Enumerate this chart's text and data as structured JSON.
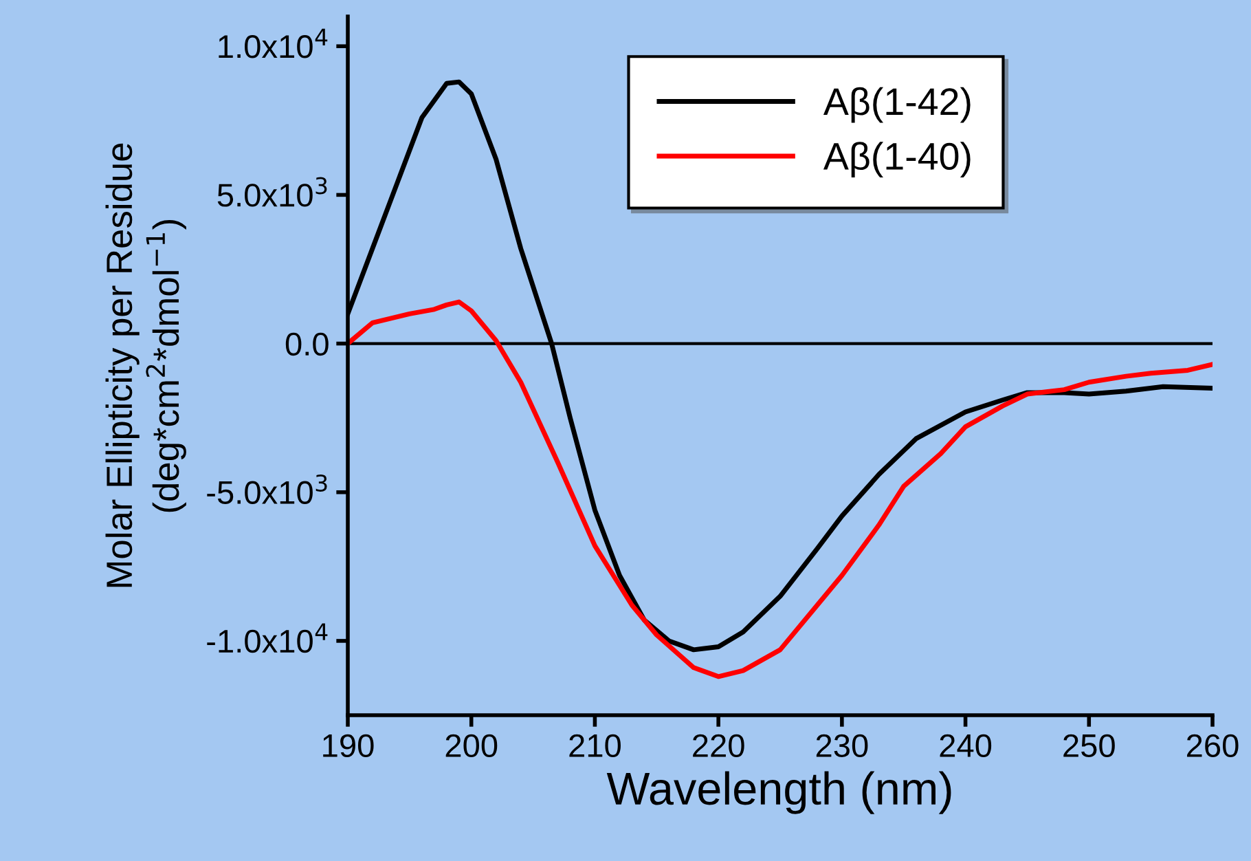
{
  "chart_data": {
    "type": "line",
    "xlabel": "Wavelength (nm)",
    "ylabel": "Molar Ellipticity per Residue\n(deg*cm$^{2}$*dmol$^{−1}$)",
    "xlim": [
      190,
      260
    ],
    "xticks": [
      190,
      200,
      210,
      220,
      230,
      240,
      250,
      260
    ],
    "ylim": [
      -12500,
      11000
    ],
    "yticks": [
      {
        "value": -10000,
        "label": "-1.0x10$^{4}$"
      },
      {
        "value": -5000,
        "label": "-5.0x10$^{3}$"
      },
      {
        "value": 0,
        "label": "0.0"
      },
      {
        "value": 5000,
        "label": "5.0x10$^{3}$"
      },
      {
        "value": 10000,
        "label": "1.0x10$^{4}$"
      }
    ],
    "grid": false,
    "legend": "top right",
    "marker": "none",
    "line_style": "solid",
    "ref_lines": [
      {
        "axis": "y",
        "value": 0,
        "color": "#000000"
      }
    ],
    "series": [
      {
        "name": "Aβ(1-42)",
        "color": "#000000",
        "x": [
          190,
          192,
          194,
          196,
          198,
          199,
          200,
          202,
          204,
          206.5,
          208,
          210,
          212,
          214,
          216,
          218,
          220,
          222,
          225,
          228,
          230,
          233,
          236,
          240,
          243,
          245,
          248,
          250,
          253,
          256,
          260
        ],
        "values": [
          1000,
          3200,
          5400,
          7600,
          8750,
          8800,
          8400,
          6200,
          3200,
          0,
          -2500,
          -5600,
          -7800,
          -9300,
          -10000,
          -10300,
          -10200,
          -9700,
          -8500,
          -6900,
          -5800,
          -4400,
          -3200,
          -2300,
          -1900,
          -1650,
          -1650,
          -1700,
          -1600,
          -1450,
          -1500
        ]
      },
      {
        "name": "Aβ(1-40)",
        "color": "#ff0000",
        "x": [
          190,
          192,
          195,
          197,
          198,
          199,
          200,
          202,
          204,
          207,
          210,
          213,
          215,
          218,
          220,
          222,
          225,
          228,
          230,
          233,
          235,
          238,
          240,
          243,
          245,
          248,
          250,
          253,
          255,
          258,
          260
        ],
        "values": [
          0,
          700,
          1000,
          1150,
          1300,
          1400,
          1100,
          100,
          -1300,
          -4000,
          -6800,
          -8800,
          -9800,
          -10900,
          -11200,
          -11000,
          -10300,
          -8800,
          -7800,
          -6100,
          -4800,
          -3700,
          -2800,
          -2100,
          -1700,
          -1550,
          -1300,
          -1100,
          -1000,
          -900,
          -700
        ]
      }
    ]
  }
}
